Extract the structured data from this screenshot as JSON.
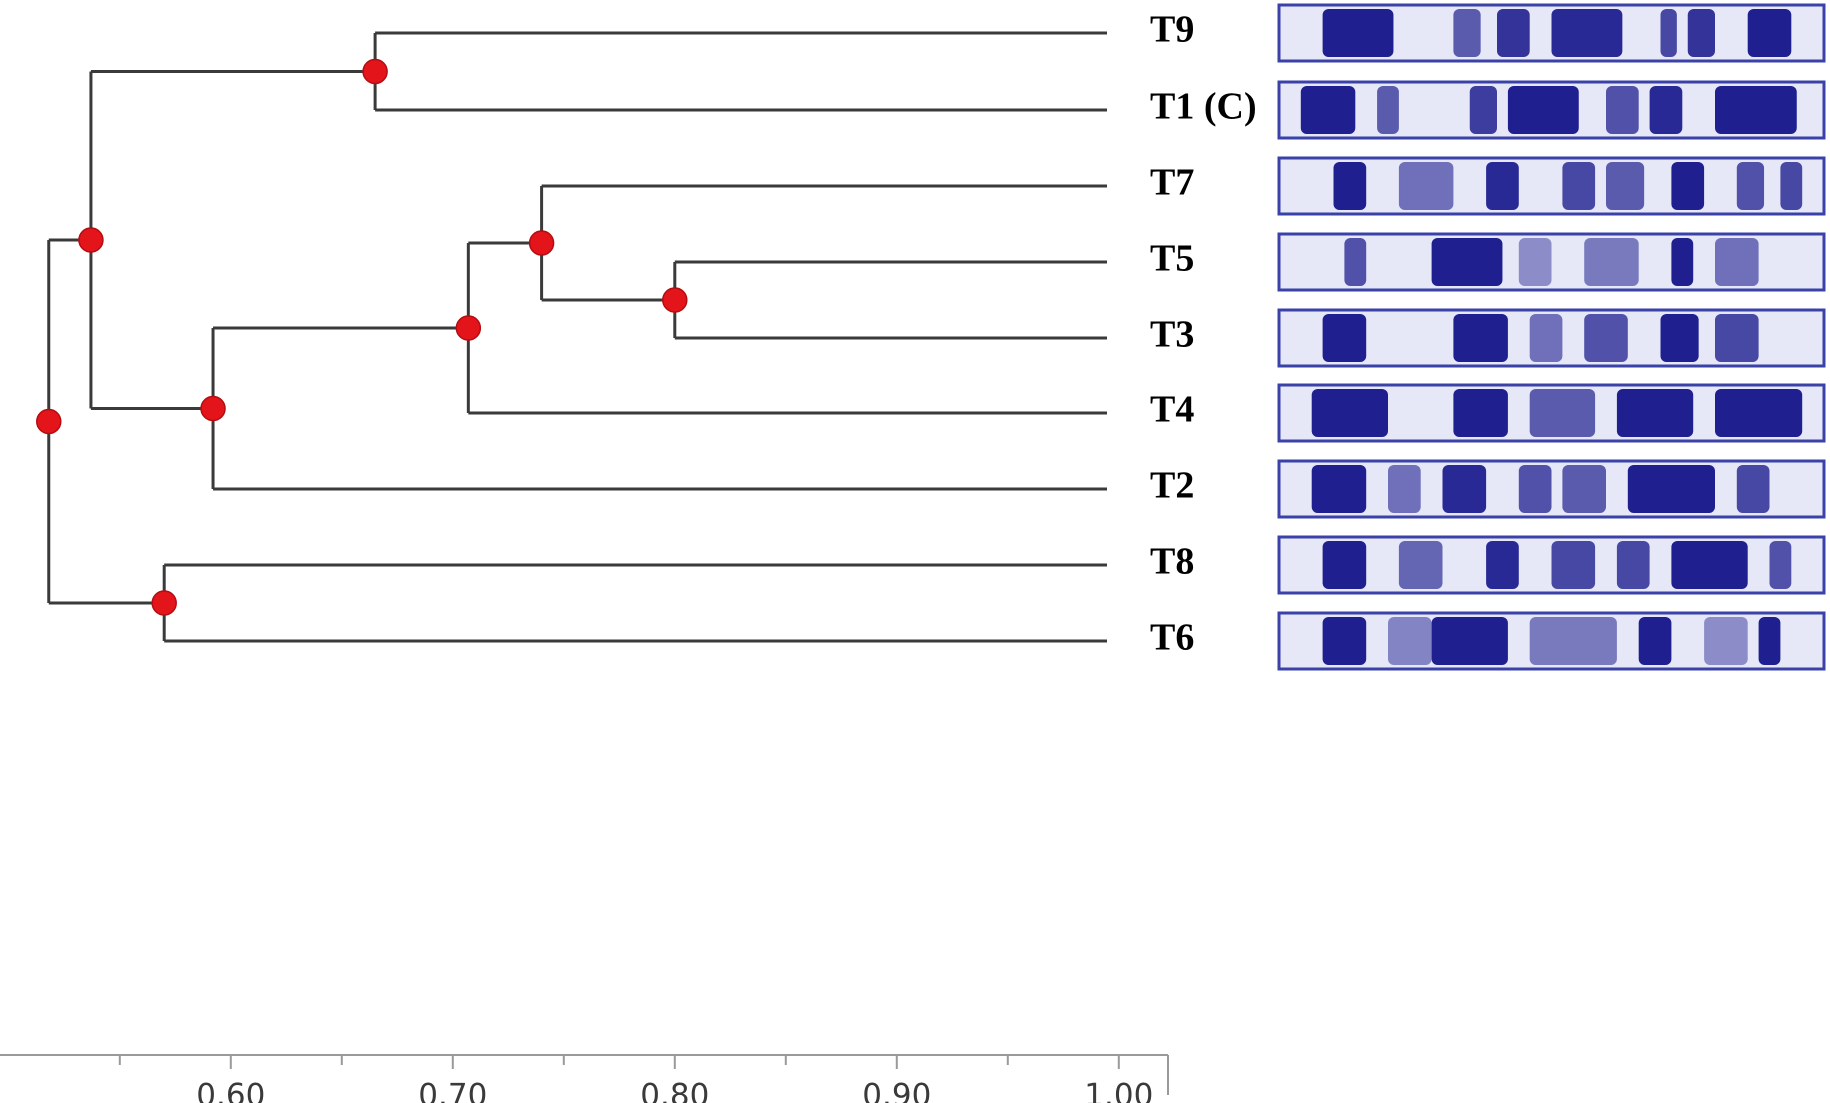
{
  "dendrogram": {
    "axis": {
      "min": 0.5,
      "max": 1.0,
      "ticks": [
        0.6,
        0.7,
        0.8,
        0.9,
        1.0
      ],
      "tick_labels": [
        "0.60",
        "0.70",
        "0.80",
        "0.90",
        "1.00"
      ]
    },
    "leaves": [
      {
        "id": "T9",
        "label": "T9"
      },
      {
        "id": "T1",
        "label": "T1 (C)"
      },
      {
        "id": "T7",
        "label": "T7"
      },
      {
        "id": "T5",
        "label": "T5"
      },
      {
        "id": "T3",
        "label": "T3"
      },
      {
        "id": "T4",
        "label": "T4"
      },
      {
        "id": "T2",
        "label": "T2"
      },
      {
        "id": "T8",
        "label": "T8"
      },
      {
        "id": "T6",
        "label": "T6"
      }
    ],
    "clusters": [
      {
        "id": "n_T9_T1",
        "similarity": 0.665,
        "children": [
          "T9",
          "T1"
        ]
      },
      {
        "id": "n_T5_T3",
        "similarity": 0.8,
        "children": [
          "T5",
          "T3"
        ]
      },
      {
        "id": "n_T7_T5T3",
        "similarity": 0.74,
        "children": [
          "T7",
          "n_T5_T3"
        ]
      },
      {
        "id": "n_T753_T4",
        "similarity": 0.707,
        "children": [
          "n_T7_T5T3",
          "T4"
        ]
      },
      {
        "id": "n_A_T2",
        "similarity": 0.592,
        "children": [
          "n_T753_T4",
          "T2"
        ]
      },
      {
        "id": "n_T91_A2",
        "similarity": 0.537,
        "children": [
          "n_T9_T1",
          "n_A_T2"
        ]
      },
      {
        "id": "n_T8_T6",
        "similarity": 0.57,
        "children": [
          "T8",
          "T6"
        ]
      },
      {
        "id": "n_root",
        "similarity": 0.518,
        "children": [
          "n_T91_A2",
          "n_T8_T6"
        ]
      }
    ],
    "colors": {
      "branch": "#3a3a3a",
      "node": "#e3151b",
      "band": "#1f1f8f",
      "lane_bg": "#e6e8f7",
      "lane_border": "#3a42a8"
    }
  },
  "gel_lanes": [
    {
      "leaf": "T9",
      "bands": [
        [
          0.08,
          0.21,
          1.0
        ],
        [
          0.32,
          0.37,
          0.7
        ],
        [
          0.4,
          0.46,
          0.9
        ],
        [
          0.5,
          0.63,
          0.95
        ],
        [
          0.7,
          0.73,
          0.8
        ],
        [
          0.75,
          0.8,
          0.9
        ],
        [
          0.86,
          0.94,
          1.0
        ]
      ]
    },
    {
      "leaf": "T1",
      "bands": [
        [
          0.04,
          0.14,
          1.0
        ],
        [
          0.18,
          0.22,
          0.7
        ],
        [
          0.35,
          0.4,
          0.85
        ],
        [
          0.42,
          0.55,
          1.0
        ],
        [
          0.6,
          0.66,
          0.75
        ],
        [
          0.68,
          0.74,
          0.95
        ],
        [
          0.8,
          0.95,
          1.0
        ]
      ]
    },
    {
      "leaf": "T7",
      "bands": [
        [
          0.1,
          0.16,
          1.0
        ],
        [
          0.22,
          0.32,
          0.6
        ],
        [
          0.38,
          0.44,
          0.95
        ],
        [
          0.52,
          0.58,
          0.8
        ],
        [
          0.6,
          0.67,
          0.7
        ],
        [
          0.72,
          0.78,
          1.0
        ],
        [
          0.84,
          0.89,
          0.75
        ],
        [
          0.92,
          0.96,
          0.8
        ]
      ]
    },
    {
      "leaf": "T5",
      "bands": [
        [
          0.12,
          0.16,
          0.75
        ],
        [
          0.28,
          0.41,
          1.0
        ],
        [
          0.44,
          0.5,
          0.45
        ],
        [
          0.56,
          0.66,
          0.55
        ],
        [
          0.72,
          0.76,
          1.0
        ],
        [
          0.8,
          0.88,
          0.6
        ]
      ]
    },
    {
      "leaf": "T3",
      "bands": [
        [
          0.08,
          0.16,
          1.0
        ],
        [
          0.32,
          0.42,
          1.0
        ],
        [
          0.46,
          0.52,
          0.6
        ],
        [
          0.56,
          0.64,
          0.75
        ],
        [
          0.7,
          0.77,
          1.0
        ],
        [
          0.8,
          0.88,
          0.8
        ]
      ]
    },
    {
      "leaf": "T4",
      "bands": [
        [
          0.06,
          0.2,
          1.0
        ],
        [
          0.32,
          0.42,
          1.0
        ],
        [
          0.46,
          0.58,
          0.7
        ],
        [
          0.62,
          0.76,
          1.0
        ],
        [
          0.8,
          0.96,
          1.0
        ]
      ]
    },
    {
      "leaf": "T2",
      "bands": [
        [
          0.06,
          0.16,
          1.0
        ],
        [
          0.2,
          0.26,
          0.6
        ],
        [
          0.3,
          0.38,
          0.95
        ],
        [
          0.44,
          0.5,
          0.75
        ],
        [
          0.52,
          0.6,
          0.7
        ],
        [
          0.64,
          0.8,
          1.0
        ],
        [
          0.84,
          0.9,
          0.8
        ]
      ]
    },
    {
      "leaf": "T8",
      "bands": [
        [
          0.08,
          0.16,
          1.0
        ],
        [
          0.22,
          0.3,
          0.65
        ],
        [
          0.38,
          0.44,
          0.95
        ],
        [
          0.5,
          0.58,
          0.8
        ],
        [
          0.62,
          0.68,
          0.8
        ],
        [
          0.72,
          0.86,
          1.0
        ],
        [
          0.9,
          0.94,
          0.75
        ]
      ]
    },
    {
      "leaf": "T6",
      "bands": [
        [
          0.08,
          0.16,
          1.0
        ],
        [
          0.2,
          0.28,
          0.5
        ],
        [
          0.28,
          0.42,
          1.0
        ],
        [
          0.46,
          0.62,
          0.55
        ],
        [
          0.66,
          0.72,
          1.0
        ],
        [
          0.78,
          0.86,
          0.45
        ],
        [
          0.88,
          0.92,
          1.0
        ]
      ]
    }
  ]
}
